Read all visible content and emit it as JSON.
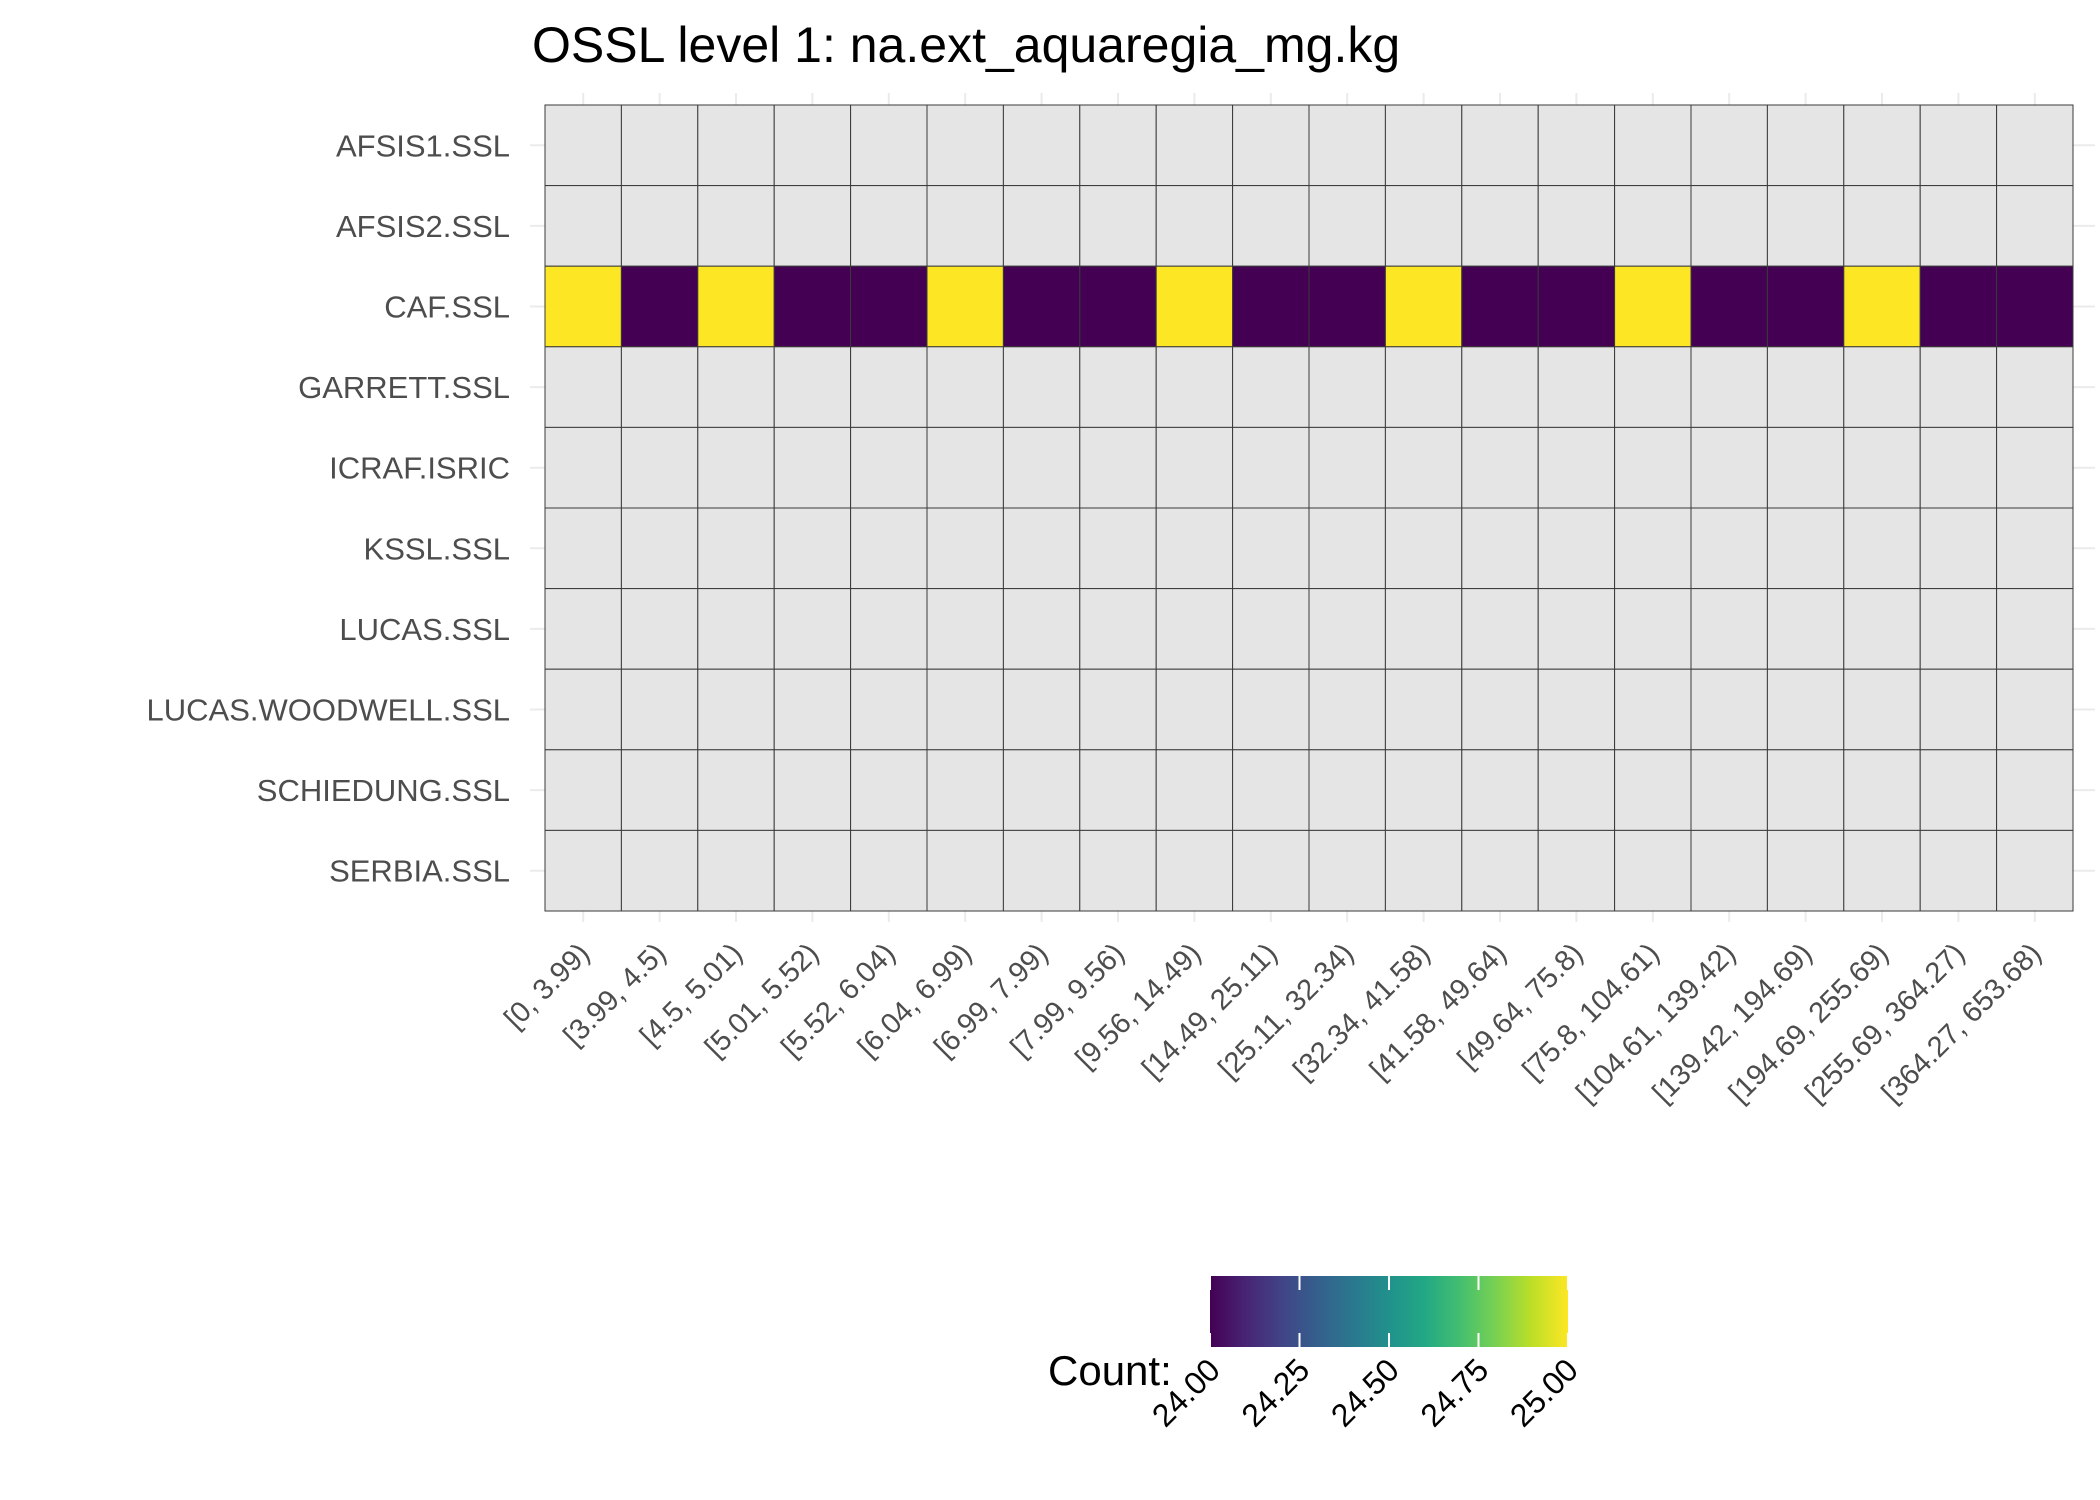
{
  "chart_data": {
    "type": "heatmap",
    "title": "OSSL level 1: na.ext_aquaregia_mg.kg",
    "xlabel": "",
    "ylabel": "",
    "x_categories": [
      "[0, 3.99)",
      "[3.99, 4.5)",
      "[4.5, 5.01)",
      "[5.01, 5.52)",
      "[5.52, 6.04)",
      "[6.04, 6.99)",
      "[6.99, 7.99)",
      "[7.99, 9.56)",
      "[9.56, 14.49)",
      "[14.49, 25.11)",
      "[25.11, 32.34)",
      "[32.34, 41.58)",
      "[41.58, 49.64)",
      "[49.64, 75.8)",
      "[75.8, 104.61)",
      "[104.61, 139.42)",
      "[139.42, 194.69)",
      "[194.69, 255.69)",
      "[255.69, 364.27)",
      "[364.27, 653.68)"
    ],
    "y_categories": [
      "AFSIS1.SSL",
      "AFSIS2.SSL",
      "CAF.SSL",
      "GARRETT.SSL",
      "ICRAF.ISRIC",
      "KSSL.SSL",
      "LUCAS.SSL",
      "LUCAS.WOODWELL.SSL",
      "SCHIEDUNG.SSL",
      "SERBIA.SSL"
    ],
    "values": {
      "CAF.SSL": [
        25,
        24,
        25,
        24,
        24,
        25,
        24,
        24,
        25,
        24,
        24,
        25,
        24,
        24,
        25,
        24,
        24,
        25,
        24,
        24
      ]
    },
    "missing_color": "#e5e5e5",
    "legend": {
      "title": "Count:",
      "position": "bottom",
      "min": 24,
      "max": 25,
      "ticks": [
        "24.00",
        "24.25",
        "24.50",
        "24.75",
        "25.00"
      ],
      "colormap": "viridis"
    },
    "grid": true
  }
}
